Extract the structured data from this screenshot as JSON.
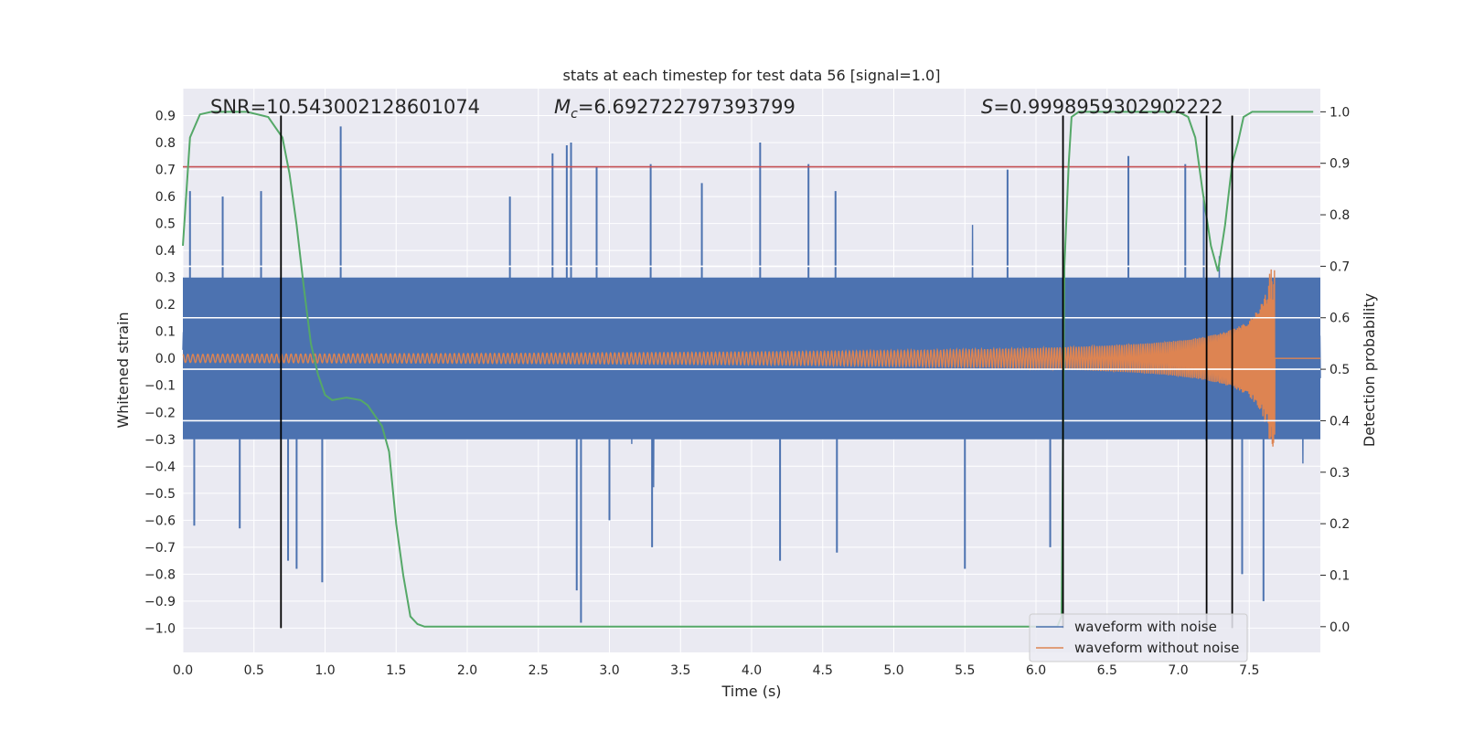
{
  "chart_data": {
    "type": "line",
    "title": "stats at each timestep for test data 56 [signal=1.0]",
    "xlabel": "Time (s)",
    "ylabel": "Whitened strain",
    "y2label": "Detection probability",
    "xlim": [
      0.0,
      8.0
    ],
    "ylim": [
      -1.09,
      1.0
    ],
    "y2lim": [
      -0.05,
      1.045
    ],
    "x_ticks": [
      0.0,
      0.5,
      1.0,
      1.5,
      2.0,
      2.5,
      3.0,
      3.5,
      4.0,
      4.5,
      5.0,
      5.5,
      6.0,
      6.5,
      7.0,
      7.5
    ],
    "x_tick_labels": [
      "0.0",
      "0.5",
      "1.0",
      "1.5",
      "2.0",
      "2.5",
      "3.0",
      "3.5",
      "4.0",
      "4.5",
      "5.0",
      "5.5",
      "6.0",
      "6.5",
      "7.0",
      "7.5"
    ],
    "y_ticks": [
      -1.0,
      -0.9,
      -0.8,
      -0.7,
      -0.6,
      -0.5,
      -0.4,
      -0.3,
      -0.2,
      -0.1,
      0.0,
      0.1,
      0.2,
      0.3,
      0.4,
      0.5,
      0.6,
      0.7,
      0.8,
      0.9
    ],
    "y_tick_labels": [
      "−1.0",
      "−0.9",
      "−0.8",
      "−0.7",
      "−0.6",
      "−0.5",
      "−0.4",
      "−0.3",
      "−0.2",
      "−0.1",
      "0.0",
      "0.1",
      "0.2",
      "0.3",
      "0.4",
      "0.5",
      "0.6",
      "0.7",
      "0.8",
      "0.9"
    ],
    "y2_ticks": [
      0.0,
      0.1,
      0.2,
      0.3,
      0.4,
      0.5,
      0.6,
      0.7,
      0.8,
      0.9,
      1.0
    ],
    "y2_tick_labels": [
      "0.0",
      "0.1",
      "0.2",
      "0.3",
      "0.4",
      "0.5",
      "0.6",
      "0.7",
      "0.8",
      "0.9",
      "1.0"
    ],
    "grid": true,
    "legend_position": "lower-right",
    "annotations": {
      "snr": "SNR=10.543002128601074",
      "mc_symbol": "M",
      "mc_sub": "c",
      "mc_value": "=6.692722797393799",
      "s_symbol": "S",
      "s_value": "=0.9998959302902222"
    },
    "series": [
      {
        "name": "waveform with noise",
        "color": "#4c72b0",
        "style": "dense noise",
        "typical_envelope": [
          -0.45,
          0.45
        ],
        "spikes": [
          {
            "x": 0.05,
            "y": 0.62
          },
          {
            "x": 0.08,
            "y": -0.62
          },
          {
            "x": 0.28,
            "y": 0.6
          },
          {
            "x": 0.4,
            "y": -0.63
          },
          {
            "x": 0.55,
            "y": 0.62
          },
          {
            "x": 0.74,
            "y": -0.75
          },
          {
            "x": 1.11,
            "y": 0.86
          },
          {
            "x": 0.98,
            "y": -0.83
          },
          {
            "x": 0.8,
            "y": -0.78
          },
          {
            "x": 2.3,
            "y": 0.6
          },
          {
            "x": 2.6,
            "y": 0.76
          },
          {
            "x": 2.7,
            "y": 0.79
          },
          {
            "x": 2.73,
            "y": 0.8
          },
          {
            "x": 2.8,
            "y": -0.98
          },
          {
            "x": 2.91,
            "y": 0.71
          },
          {
            "x": 2.77,
            "y": -0.86
          },
          {
            "x": 3.29,
            "y": 0.72
          },
          {
            "x": 3.65,
            "y": 0.65
          },
          {
            "x": 4.06,
            "y": 0.8
          },
          {
            "x": 4.4,
            "y": 0.72
          },
          {
            "x": 4.59,
            "y": 0.62
          },
          {
            "x": 5.8,
            "y": 0.7
          },
          {
            "x": 6.65,
            "y": 0.75
          },
          {
            "x": 7.05,
            "y": 0.72
          },
          {
            "x": 7.18,
            "y": 0.6
          },
          {
            "x": 7.45,
            "y": -0.8
          },
          {
            "x": 7.6,
            "y": -0.9
          },
          {
            "x": 3.0,
            "y": -0.6
          },
          {
            "x": 3.3,
            "y": -0.7
          },
          {
            "x": 4.2,
            "y": -0.75
          },
          {
            "x": 4.6,
            "y": -0.72
          },
          {
            "x": 5.5,
            "y": -0.78
          },
          {
            "x": 6.1,
            "y": -0.7
          }
        ]
      },
      {
        "name": "waveform without noise",
        "color": "#dd8452",
        "style": "chirp",
        "start_amplitude": 0.015,
        "peak_x": 7.68,
        "peak_amplitude": 0.33,
        "end_x": 7.68
      },
      {
        "name": "",
        "color": "#55a868",
        "axis": "right",
        "x": [
          0.0,
          0.05,
          0.12,
          0.2,
          0.3,
          0.45,
          0.6,
          0.7,
          0.75,
          0.8,
          0.85,
          0.9,
          0.95,
          1.0,
          1.05,
          1.15,
          1.25,
          1.3,
          1.4,
          1.45,
          1.5,
          1.55,
          1.6,
          1.65,
          1.7,
          2.0,
          3.0,
          4.0,
          5.0,
          6.0,
          6.15,
          6.18,
          6.2,
          6.23,
          6.25,
          6.3,
          6.5,
          6.8,
          7.0,
          7.07,
          7.12,
          7.17,
          7.23,
          7.28,
          7.33,
          7.38,
          7.42,
          7.46,
          7.52,
          7.6,
          7.8,
          7.95
        ],
        "y": [
          0.74,
          0.95,
          0.995,
          1.0,
          1.0,
          1.0,
          0.99,
          0.95,
          0.88,
          0.78,
          0.66,
          0.55,
          0.49,
          0.45,
          0.44,
          0.445,
          0.44,
          0.43,
          0.39,
          0.34,
          0.2,
          0.1,
          0.02,
          0.005,
          0.0,
          0.0,
          0.0,
          0.0,
          0.0,
          0.0,
          0.0,
          0.02,
          0.7,
          0.9,
          0.99,
          1.0,
          1.0,
          1.0,
          1.0,
          0.99,
          0.95,
          0.85,
          0.74,
          0.69,
          0.78,
          0.9,
          0.94,
          0.99,
          1.0,
          1.0,
          1.0,
          1.0
        ]
      }
    ],
    "threshold_line": {
      "y": 0.71,
      "color": "#c44e52"
    },
    "white_reference_lines_right_axis": [
      0.4,
      0.5,
      0.6,
      0.7
    ],
    "vertical_markers": [
      {
        "x": 0.69,
        "y_top": 0.9,
        "y_bottom": -1.0
      },
      {
        "x": 6.19,
        "y_top": 0.9,
        "y_bottom": -1.0
      },
      {
        "x": 7.2,
        "y_top": 0.9,
        "y_bottom": -1.0
      },
      {
        "x": 7.38,
        "y_top": 0.9,
        "y_bottom": -1.0
      }
    ]
  },
  "colors": {
    "plot_bg": "#eaeaf2",
    "grid": "#ffffff",
    "text": "#262626"
  }
}
